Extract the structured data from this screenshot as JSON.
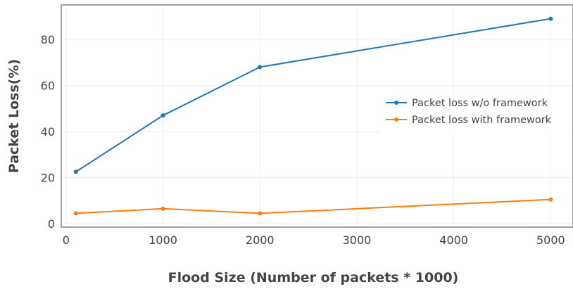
{
  "chart_data": {
    "type": "line",
    "xlabel": "Flood Size (Number of packets * 1000)",
    "ylabel": "Packet Loss(%)",
    "xlim": [
      -50,
      5230
    ],
    "ylim": [
      -1.5,
      95
    ],
    "x_ticks": [
      0,
      1000,
      2000,
      3000,
      4000,
      5000
    ],
    "y_ticks": [
      0,
      20,
      40,
      60,
      80
    ],
    "grid": true,
    "legend_position": "right",
    "series": [
      {
        "name": "Packet loss w/o framework",
        "color": "#1f77b4",
        "x": [
          100,
          1000,
          2000,
          5000
        ],
        "y": [
          22.5,
          47,
          68,
          89
        ]
      },
      {
        "name": "Packet loss with framework",
        "color": "#ff7f0e",
        "x": [
          100,
          1000,
          2000,
          5000
        ],
        "y": [
          4.5,
          6.5,
          4.5,
          10.5
        ]
      }
    ]
  }
}
